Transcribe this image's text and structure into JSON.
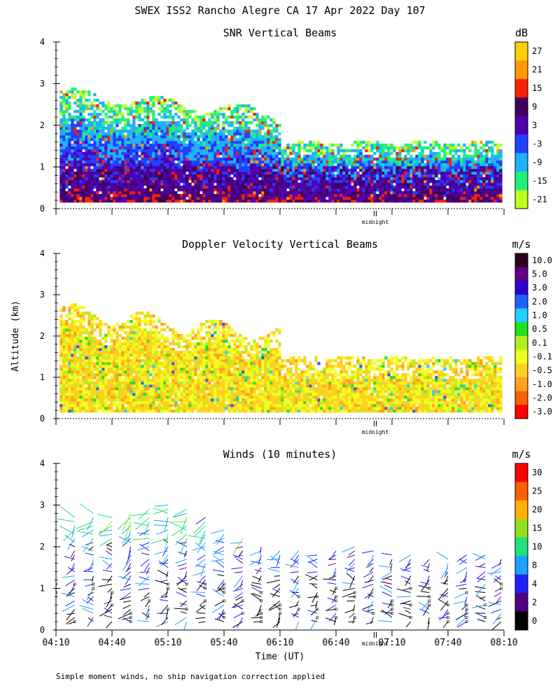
{
  "page": {
    "title": "SWEX ISS2 Rancho Alegre CA  17 Apr 2022 Day 107",
    "ylabel": "Altitude (km)",
    "xlabel": "Time (UT)",
    "footer": "Simple moment winds, no ship navigation correction applied"
  },
  "chart_data": [
    {
      "type": "heatmap",
      "title": "SNR Vertical Beams",
      "ylim": [
        0,
        4
      ],
      "yticks": [
        "0",
        "1",
        "2",
        "3",
        "4"
      ],
      "xlim": [
        0,
        240
      ],
      "marker_label": "midnight",
      "colorbar": {
        "units": "dB",
        "labels": [
          "27",
          "21",
          "15",
          "9",
          "3",
          "-3",
          "-9",
          "-15",
          "-21"
        ],
        "colors": [
          "#ffd000",
          "#ff9a00",
          "#ff2000",
          "#400060",
          "#5000b0",
          "#2040ff",
          "#20b0ff",
          "#20f080",
          "#c0ff20"
        ]
      }
    },
    {
      "type": "heatmap",
      "title": "Doppler Velocity Vertical Beams",
      "ylim": [
        0,
        4
      ],
      "yticks": [
        "0",
        "1",
        "2",
        "3",
        "4"
      ],
      "xlim": [
        0,
        240
      ],
      "marker_label": "midnight",
      "colorbar": {
        "units": "m/s",
        "labels": [
          "10.0",
          "5.0",
          "3.0",
          "2.0",
          "1.0",
          "0.5",
          "0.1",
          "-0.1",
          "-0.5",
          "-1.0",
          "-2.0",
          "-3.0"
        ],
        "colors": [
          "#300020",
          "#600080",
          "#3000d0",
          "#2060ff",
          "#20d0ff",
          "#20e020",
          "#b0f020",
          "#f0ff20",
          "#ffd020",
          "#ffa020",
          "#ff6000",
          "#ff0000"
        ]
      }
    },
    {
      "type": "scatter",
      "title": "Winds (10 minutes)",
      "ylim": [
        0,
        4
      ],
      "yticks": [
        "0",
        "1",
        "2",
        "3",
        "4"
      ],
      "xlim": [
        0,
        240
      ],
      "xticks": [
        "04:10",
        "04:40",
        "05:10",
        "05:40",
        "06:10",
        "06:40",
        "07:10",
        "07:40",
        "08:10"
      ],
      "marker_label": "midnight",
      "colorbar": {
        "units": "m/s",
        "labels": [
          "30",
          "25",
          "20",
          "15",
          "10",
          "8",
          "4",
          "2",
          "0"
        ],
        "colors": [
          "#ff0000",
          "#ff6000",
          "#ffb000",
          "#90e020",
          "#20e080",
          "#20a0ff",
          "#2020ff",
          "#500080",
          "#000000"
        ]
      },
      "profile_times_min": [
        0,
        10,
        20,
        30,
        40,
        50,
        60,
        70,
        80,
        90,
        100,
        110,
        120,
        130,
        140,
        150,
        160,
        170,
        180,
        190,
        200,
        210,
        220,
        230,
        240
      ],
      "profile_tops_km": [
        2.9,
        2.8,
        2.9,
        2.8,
        2.9,
        3.0,
        3.1,
        3.0,
        2.8,
        2.5,
        2.3,
        2.1,
        2.0,
        2.0,
        1.9,
        2.0,
        2.1,
        2.0,
        1.9,
        1.9,
        1.8,
        1.8,
        1.9,
        1.9,
        1.8
      ]
    }
  ]
}
